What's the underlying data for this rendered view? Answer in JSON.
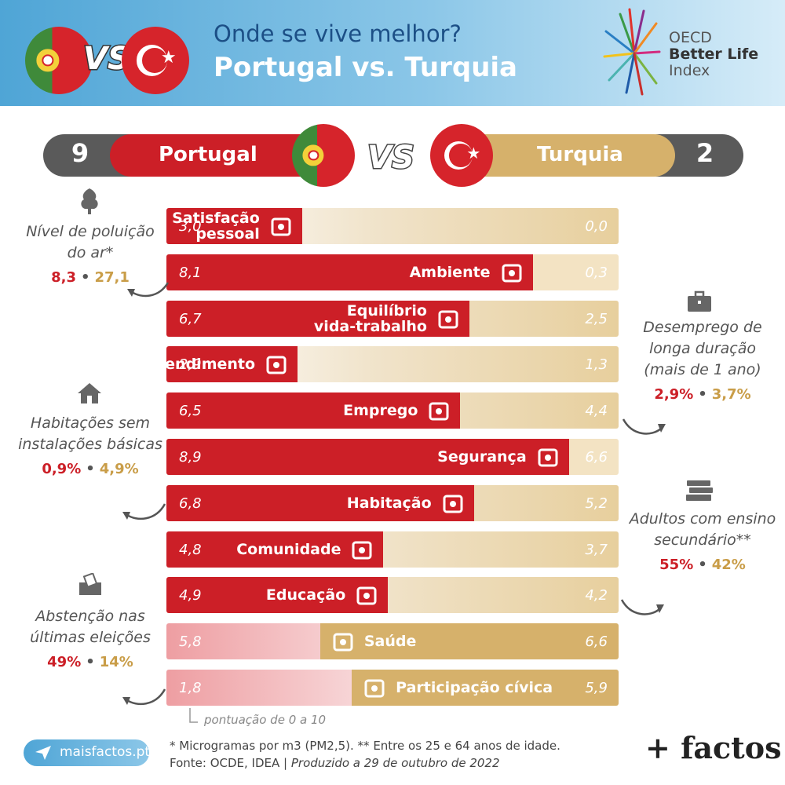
{
  "header": {
    "vs": "VS",
    "title_line1": "Onde se vive melhor?",
    "title_line2": "Portugal vs. Turquia",
    "oecd": {
      "line1": "OECD",
      "line2": "Better Life",
      "line3": "Index"
    }
  },
  "scoreboard": {
    "left_score": "9",
    "left_country": "Portugal",
    "vs": "VS",
    "right_country": "Turquia",
    "right_score": "2"
  },
  "colors": {
    "portugal": "#cc1f27",
    "turquia": "#d6b16b",
    "score_bg": "#5a5a5a",
    "header": "#4fa5d6"
  },
  "chart_data": {
    "type": "bar",
    "subtype": "diverging-comparison",
    "xlim": [
      0,
      10
    ],
    "series": [
      {
        "name": "Portugal"
      },
      {
        "name": "Turquia"
      }
    ],
    "categories": [
      {
        "label": "Satisfação pessoal",
        "portugal": 3.0,
        "turquia": 0.0,
        "portugal_text": "3,0",
        "turquia_text": "0,0",
        "winner": "portugal",
        "icon": "person-arms-up-icon"
      },
      {
        "label": "Ambiente",
        "portugal": 8.1,
        "turquia": 0.3,
        "portugal_text": "8,1",
        "turquia_text": "0,3",
        "winner": "portugal",
        "icon": "tree-icon"
      },
      {
        "label": "Equilíbrio vida-trabalho",
        "portugal": 6.7,
        "turquia": 2.5,
        "portugal_text": "6,7",
        "turquia_text": "2,5",
        "winner": "portugal",
        "icon": "people-at-table-icon"
      },
      {
        "label": "Rendimento",
        "portugal": 2.9,
        "turquia": 1.3,
        "portugal_text": "2,9",
        "turquia_text": "1,3",
        "winner": "portugal",
        "icon": "money-stack-icon"
      },
      {
        "label": "Emprego",
        "portugal": 6.5,
        "turquia": 4.4,
        "portugal_text": "6,5",
        "turquia_text": "4,4",
        "winner": "portugal",
        "icon": "briefcase-icon"
      },
      {
        "label": "Segurança",
        "portugal": 8.9,
        "turquia": 6.6,
        "portugal_text": "8,9",
        "turquia_text": "6,6",
        "winner": "portugal",
        "icon": "police-officer-icon"
      },
      {
        "label": "Habitação",
        "portugal": 6.8,
        "turquia": 5.2,
        "portugal_text": "6,8",
        "turquia_text": "5,2",
        "winner": "portugal",
        "icon": "house-icon"
      },
      {
        "label": "Comunidade",
        "portugal": 4.8,
        "turquia": 3.7,
        "portugal_text": "4,8",
        "turquia_text": "3,7",
        "winner": "portugal",
        "icon": "group-people-icon"
      },
      {
        "label": "Educação",
        "portugal": 4.9,
        "turquia": 4.2,
        "portugal_text": "4,9",
        "turquia_text": "4,2",
        "winner": "portugal",
        "icon": "books-icon"
      },
      {
        "label": "Saúde",
        "portugal": 5.8,
        "turquia": 6.6,
        "portugal_text": "5,8",
        "turquia_text": "6,6",
        "winner": "turquia",
        "icon": "doctor-icon"
      },
      {
        "label": "Participação cívica",
        "portugal": 1.8,
        "turquia": 5.9,
        "portugal_text": "1,8",
        "turquia_text": "5,9",
        "winner": "turquia",
        "icon": "ballot-box-icon"
      }
    ],
    "scale_note": "pontuação de 0 a 10"
  },
  "notes": {
    "air": {
      "label": "Nível de poluição do ar*",
      "pt": "8,3",
      "tr": "27,1"
    },
    "housing": {
      "label": "Habitações sem instalações básicas",
      "pt": "0,9%",
      "tr": "4,9%"
    },
    "vote": {
      "label": "Abstenção nas últimas eleições",
      "pt": "49%",
      "tr": "14%"
    },
    "unemp": {
      "label": "Desemprego de longa duração (mais de 1 ano)",
      "pt": "2,9%",
      "tr": "3,7%"
    },
    "adults": {
      "label": "Adultos com ensino secundário**",
      "pt": "55%",
      "tr": "42%"
    },
    "separator": "•"
  },
  "footer": {
    "site": "maisfactos.pt",
    "note_line1": "* Microgramas por m3 (PM2,5). ** Entre os 25 e 64 anos de idade.",
    "note_line2a": "Fonte: OCDE, IDEA | ",
    "note_line2b": "Produzido a 29 de outubro de 2022",
    "brand": "+ factos"
  }
}
